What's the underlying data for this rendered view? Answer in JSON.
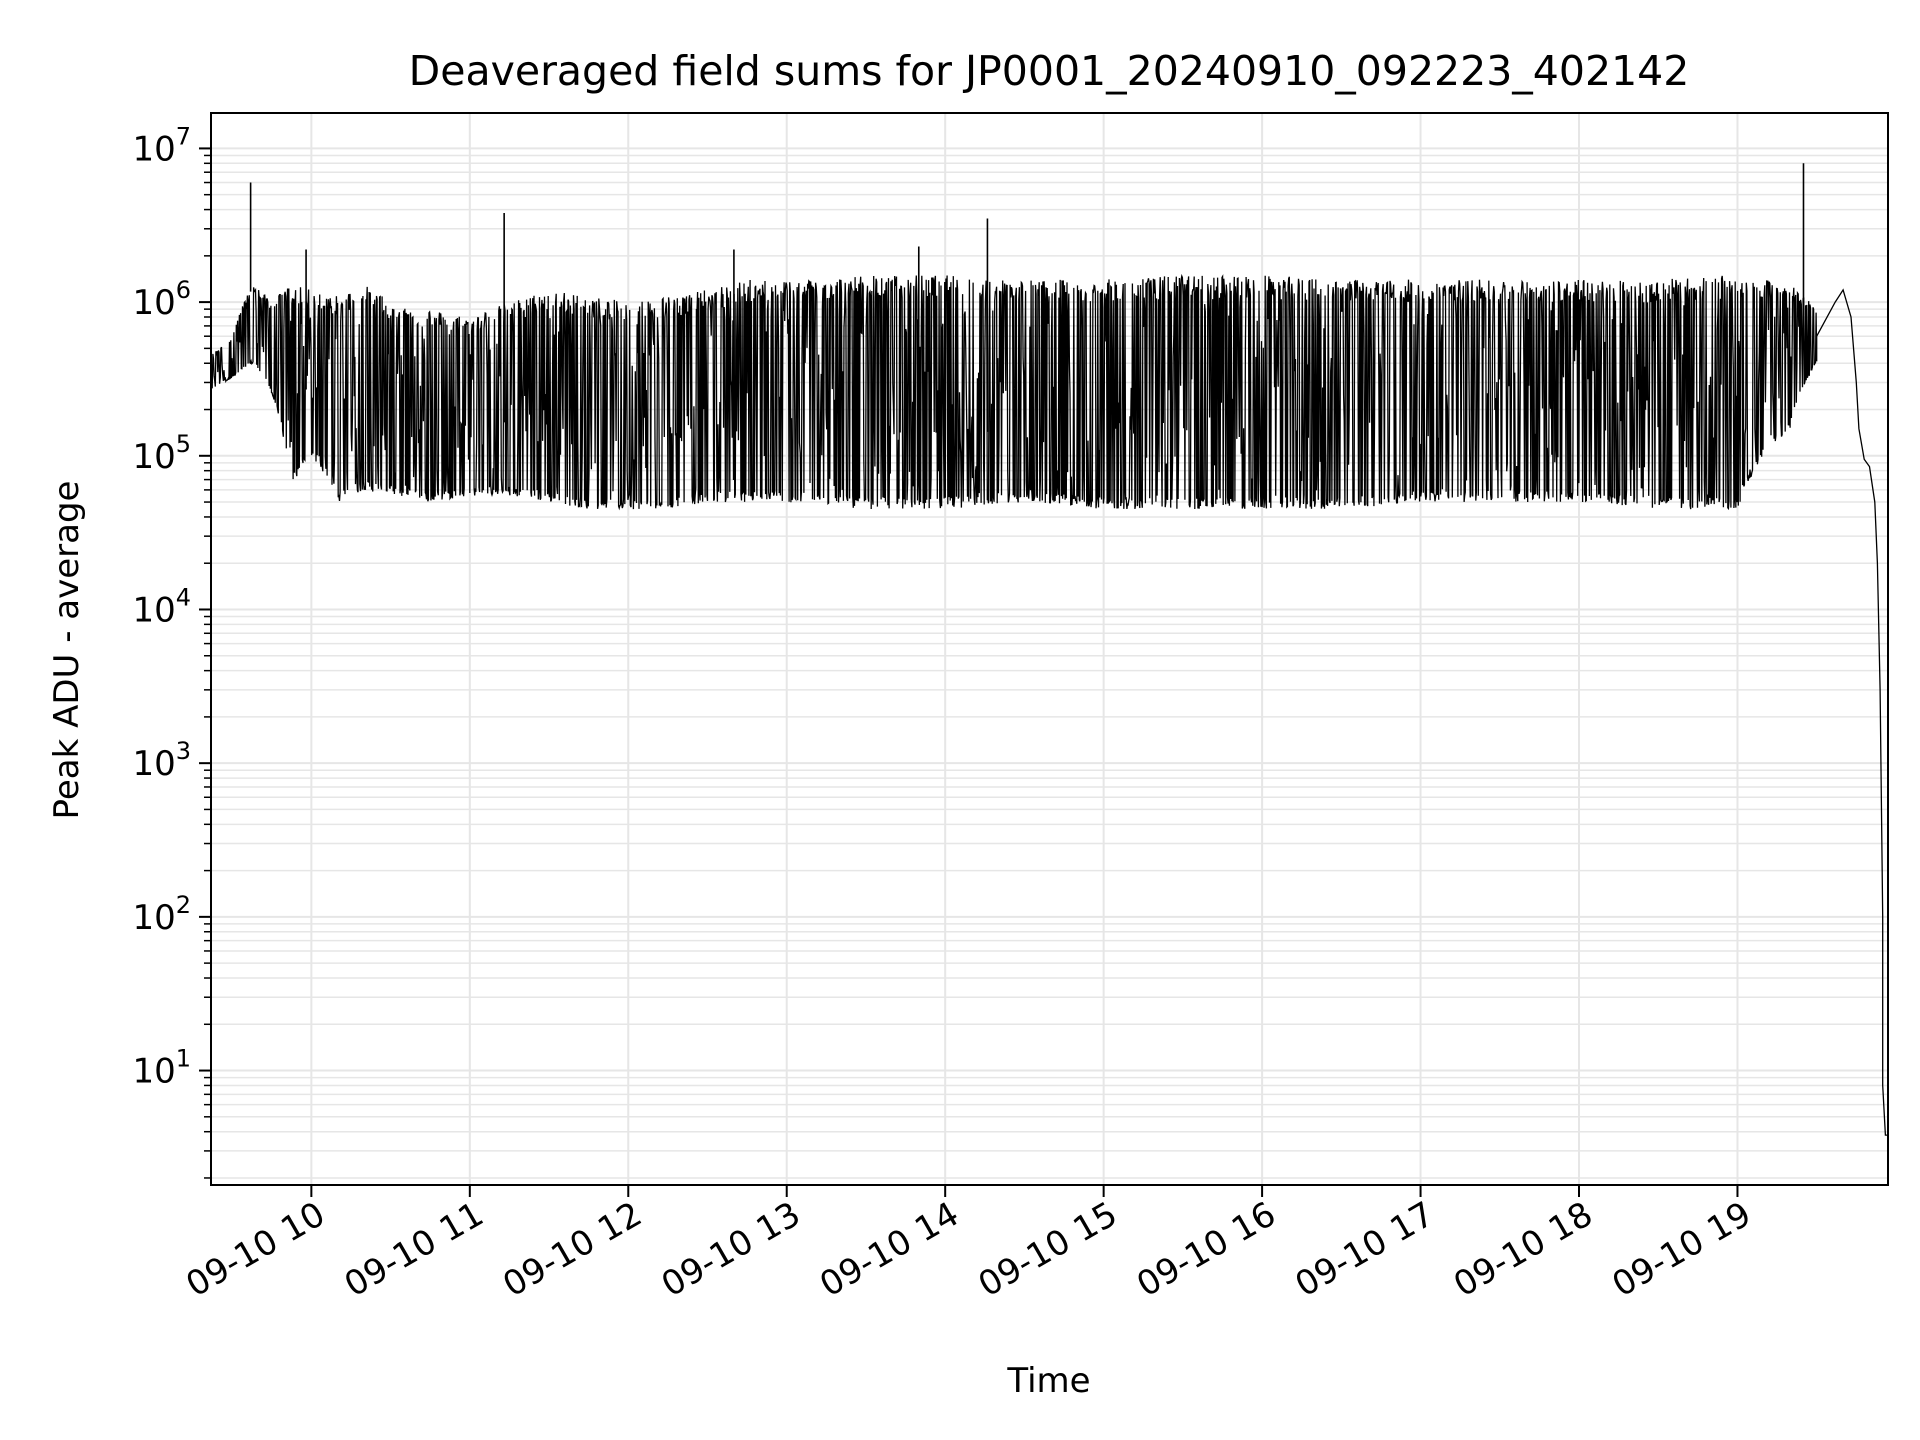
{
  "chart_data": {
    "type": "line",
    "title": "Deaveraged field sums for JP0001_20240910_092223_402142",
    "xlabel": "Time",
    "ylabel": "Peak ADU - average",
    "yscale": "log",
    "ylim": [
      1.8,
      17000000
    ],
    "xlim": [
      "2024-09-10 09:22",
      "2024-09-10 19:57"
    ],
    "grid": true,
    "line_color": "#000000",
    "grid_color": "#e6e6e6",
    "x_ticks": [
      {
        "value": "2024-09-10 10:00",
        "label": "09-10 10"
      },
      {
        "value": "2024-09-10 11:00",
        "label": "09-10 11"
      },
      {
        "value": "2024-09-10 12:00",
        "label": "09-10 12"
      },
      {
        "value": "2024-09-10 13:00",
        "label": "09-10 13"
      },
      {
        "value": "2024-09-10 14:00",
        "label": "09-10 14"
      },
      {
        "value": "2024-09-10 15:00",
        "label": "09-10 15"
      },
      {
        "value": "2024-09-10 16:00",
        "label": "09-10 16"
      },
      {
        "value": "2024-09-10 17:00",
        "label": "09-10 17"
      },
      {
        "value": "2024-09-10 18:00",
        "label": "09-10 18"
      },
      {
        "value": "2024-09-10 19:00",
        "label": "09-10 19"
      }
    ],
    "y_ticks": [
      {
        "value": 10,
        "base": "10",
        "exp": "1"
      },
      {
        "value": 100,
        "base": "10",
        "exp": "2"
      },
      {
        "value": 1000,
        "base": "10",
        "exp": "3"
      },
      {
        "value": 10000,
        "base": "10",
        "exp": "4"
      },
      {
        "value": 100000,
        "base": "10",
        "exp": "5"
      },
      {
        "value": 1000000,
        "base": "10",
        "exp": "6"
      },
      {
        "value": 10000000,
        "base": "10",
        "exp": "7"
      }
    ],
    "series": [
      {
        "envelope": [
          {
            "t": "09:22",
            "low": 270000,
            "high": 450000
          },
          {
            "t": "09:30",
            "low": 320000,
            "high": 600000
          },
          {
            "t": "09:38",
            "low": 400000,
            "high": 1300000
          },
          {
            "t": "09:45",
            "low": 250000,
            "high": 1000000
          },
          {
            "t": "09:52",
            "low": 60000,
            "high": 1300000
          },
          {
            "t": "10:00",
            "low": 100000,
            "high": 1200000
          },
          {
            "t": "10:10",
            "low": 50000,
            "high": 1100000
          },
          {
            "t": "10:20",
            "low": 60000,
            "high": 1300000
          },
          {
            "t": "10:30",
            "low": 55000,
            "high": 1000000
          },
          {
            "t": "10:45",
            "low": 50000,
            "high": 900000
          },
          {
            "t": "11:00",
            "low": 55000,
            "high": 800000
          },
          {
            "t": "11:15",
            "low": 55000,
            "high": 1000000
          },
          {
            "t": "11:30",
            "low": 50000,
            "high": 1200000
          },
          {
            "t": "11:45",
            "low": 45000,
            "high": 1100000
          },
          {
            "t": "12:00",
            "low": 45000,
            "high": 1000000
          },
          {
            "t": "12:15",
            "low": 45000,
            "high": 1100000
          },
          {
            "t": "12:30",
            "low": 50000,
            "high": 1200000
          },
          {
            "t": "12:45",
            "low": 50000,
            "high": 1400000
          },
          {
            "t": "13:00",
            "low": 50000,
            "high": 1400000
          },
          {
            "t": "13:30",
            "low": 45000,
            "high": 1500000
          },
          {
            "t": "14:00",
            "low": 45000,
            "high": 1500000
          },
          {
            "t": "14:30",
            "low": 50000,
            "high": 1400000
          },
          {
            "t": "15:00",
            "low": 45000,
            "high": 1400000
          },
          {
            "t": "15:30",
            "low": 45000,
            "high": 1500000
          },
          {
            "t": "16:00",
            "low": 45000,
            "high": 1500000
          },
          {
            "t": "16:30",
            "low": 45000,
            "high": 1400000
          },
          {
            "t": "17:00",
            "low": 50000,
            "high": 1400000
          },
          {
            "t": "17:30",
            "low": 50000,
            "high": 1400000
          },
          {
            "t": "18:00",
            "low": 50000,
            "high": 1400000
          },
          {
            "t": "18:30",
            "low": 45000,
            "high": 1400000
          },
          {
            "t": "19:00",
            "low": 45000,
            "high": 1500000
          },
          {
            "t": "19:20",
            "low": 150000,
            "high": 1300000
          },
          {
            "t": "19:30",
            "low": 400000,
            "high": 900000
          }
        ],
        "spikes": [
          {
            "t": "09:37",
            "value": 6000000
          },
          {
            "t": "09:58",
            "value": 2200000
          },
          {
            "t": "11:13",
            "value": 3800000
          },
          {
            "t": "12:40",
            "value": 2200000
          },
          {
            "t": "13:50",
            "value": 2300000
          },
          {
            "t": "14:16",
            "value": 3500000
          },
          {
            "t": "19:25",
            "value": 8000000
          }
        ],
        "tail": [
          {
            "t": "19:30",
            "value": 600000
          },
          {
            "t": "19:37",
            "value": 1000000
          },
          {
            "t": "19:40",
            "value": 1200000
          },
          {
            "t": "19:43",
            "value": 800000
          },
          {
            "t": "19:45",
            "value": 300000
          },
          {
            "t": "19:46",
            "value": 150000
          },
          {
            "t": "19:48",
            "value": 95000
          },
          {
            "t": "19:50",
            "value": 85000
          },
          {
            "t": "19:52",
            "value": 50000
          },
          {
            "t": "19:53",
            "value": 20000
          },
          {
            "t": "19:54",
            "value": 3000
          },
          {
            "t": "19:55",
            "value": 100
          },
          {
            "t": "19:55",
            "value": 8
          },
          {
            "t": "19:56",
            "value": 3.8
          },
          {
            "t": "19:57",
            "value": 3.8
          }
        ]
      }
    ]
  }
}
